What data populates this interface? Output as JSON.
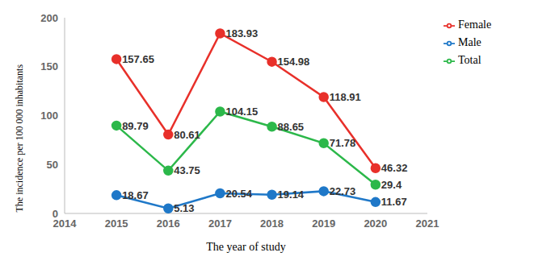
{
  "chart_data": {
    "type": "line",
    "x_label": "The year of study",
    "y_label": "The incidence per 100 000 inhabitants",
    "x": [
      2015,
      2016,
      2017,
      2018,
      2019,
      2020
    ],
    "series": [
      {
        "name": "Female",
        "color": "#e8302a",
        "marker": "circle",
        "line_style": "solid",
        "values": [
          157.65,
          80.61,
          183.93,
          154.98,
          118.91,
          46.32
        ]
      },
      {
        "name": "Male",
        "color": "#1f78c8",
        "marker": "circle",
        "line_style": "solid",
        "values": [
          18.67,
          5.13,
          20.54,
          19.14,
          22.73,
          11.67
        ]
      },
      {
        "name": "Total",
        "color": "#2cb84a",
        "marker": "circle",
        "line_style": "solid",
        "values": [
          89.79,
          43.75,
          104.15,
          88.65,
          71.78,
          29.4
        ]
      }
    ],
    "xlim": [
      2014,
      2021
    ],
    "xticks": [
      2014,
      2015,
      2016,
      2017,
      2018,
      2019,
      2020,
      2021
    ],
    "ylim": [
      0,
      200
    ],
    "yticks": [
      0,
      50,
      100,
      150,
      200
    ],
    "grid": false,
    "legend": "upper right",
    "data_labels": true
  }
}
